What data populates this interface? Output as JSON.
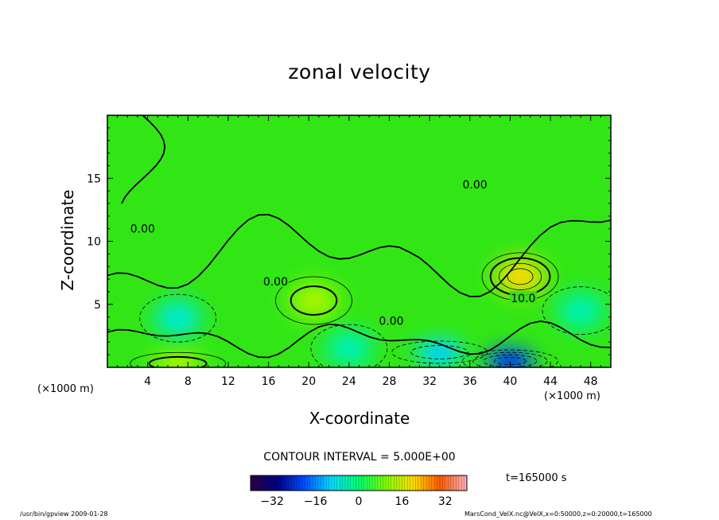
{
  "title": "zonal velocity",
  "xlabel": "X-coordinate",
  "ylabel": "Z-coordinate",
  "x_unit_left": "(×1000 m)",
  "x_unit_right": "(×1000 m)",
  "contour_interval": "CONTOUR INTERVAL = 5.000E+00",
  "time_label": "t=165000 s",
  "footer_left": "/usr/bin/gpview   2009-01-28",
  "footer_right": "MarsCond_VelX.nc@VelX,x=0:50000,z=0:20000,t=165000",
  "chart_data": {
    "type": "heatmap",
    "title": "zonal velocity",
    "xlabel": "X-coordinate",
    "ylabel": "Z-coordinate",
    "x_unit": "(×1000 m)",
    "xlim": [
      0,
      50
    ],
    "ylim": [
      0,
      20
    ],
    "x_ticks": [
      4,
      8,
      12,
      16,
      20,
      24,
      28,
      32,
      36,
      40,
      44,
      48
    ],
    "y_ticks": [
      5,
      10,
      15
    ],
    "contour_labels": [
      {
        "text": "0.00",
        "x": 36.5,
        "y": 14.5
      },
      {
        "text": "0.00",
        "x": 3.5,
        "y": 11
      },
      {
        "text": "0.00",
        "x": 16.7,
        "y": 6.8
      },
      {
        "text": "0.00",
        "x": 28.2,
        "y": 3.7
      },
      {
        "text": "10.0",
        "x": 41.3,
        "y": 5.5
      }
    ],
    "colorbar": {
      "min": -40,
      "max": 40,
      "ticks": [
        -32,
        -16,
        0,
        16,
        32
      ],
      "colors": [
        "#2a0040",
        "#00008a",
        "#0050ff",
        "#00e0ff",
        "#00ff70",
        "#7cff00",
        "#ffe000",
        "#ff5a00",
        "#ffb0c0"
      ]
    },
    "features": [
      {
        "kind": "max",
        "x": 41,
        "y": 7.2,
        "value": 18
      },
      {
        "kind": "max",
        "x": 20.5,
        "y": 5.3,
        "value": 12
      },
      {
        "kind": "max",
        "x": 7,
        "y": 0.3,
        "value": 12
      },
      {
        "kind": "min",
        "x": 7,
        "y": 3.9,
        "value": -6
      },
      {
        "kind": "min",
        "x": 40,
        "y": 0.5,
        "value": -20
      },
      {
        "kind": "min",
        "x": 33,
        "y": 1.2,
        "value": -10
      },
      {
        "kind": "min",
        "x": 47,
        "y": 4.5,
        "value": -4
      },
      {
        "kind": "min",
        "x": 24,
        "y": 1.5,
        "value": -4
      }
    ],
    "grid": false
  }
}
